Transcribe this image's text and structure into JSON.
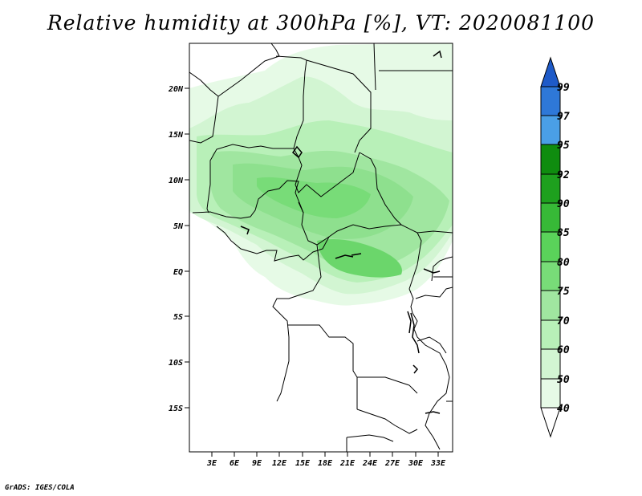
{
  "title": "Relative humidity at 300hPa [%], VT: 2020081100",
  "credit": "GrADS: IGES/COLA",
  "map": {
    "variable": "Relative humidity",
    "level": "300hPa",
    "units": "%",
    "valid_time": "2020081100",
    "lat_ticks": [
      "20N",
      "15N",
      "10N",
      "5N",
      "EQ",
      "5S",
      "10S",
      "15S"
    ],
    "lon_ticks": [
      "3E",
      "6E",
      "9E",
      "12E",
      "15E",
      "18E",
      "21E",
      "24E",
      "27E",
      "30E",
      "33E"
    ]
  },
  "legend": {
    "levels": [
      "40",
      "50",
      "60",
      "70",
      "75",
      "80",
      "85",
      "90",
      "92",
      "95",
      "97",
      "99"
    ],
    "colors": [
      "#ffffff",
      "#e6fae6",
      "#d2f5d2",
      "#b8f0b8",
      "#a0e6a0",
      "#78dc78",
      "#5ad25a",
      "#37b937",
      "#1ea01e",
      "#0f8c0f",
      "#4a9fe6",
      "#2e78d8",
      "#1e5ac8"
    ]
  },
  "colors": {
    "coast": "#000000",
    "frame": "#000000"
  }
}
